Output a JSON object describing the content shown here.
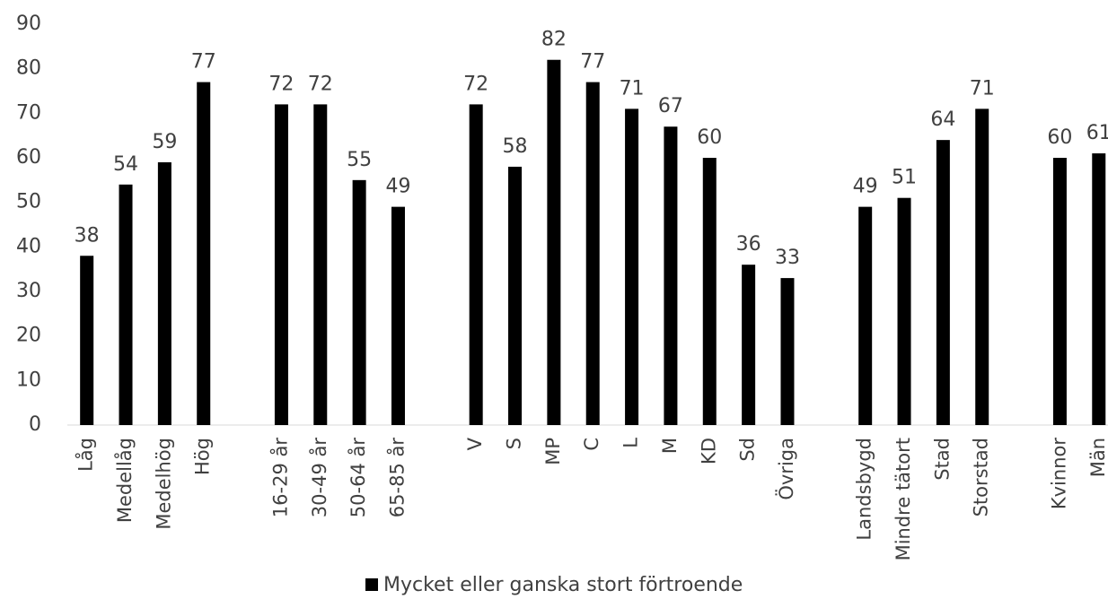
{
  "chart_data": {
    "type": "bar",
    "categories": [
      "Låg",
      "Medellåg",
      "Medelhög",
      "Hög",
      null,
      "16-29 år",
      "30-49 år",
      "50-64 år",
      "65-85 år",
      null,
      "V",
      "S",
      "MP",
      "C",
      "L",
      "M",
      "KD",
      "Sd",
      "Övriga",
      null,
      "Landsbygd",
      "Mindre tätort",
      "Stad",
      "Storstad",
      null,
      "Kvinnor",
      "Män"
    ],
    "series": [
      {
        "name": "Mycket eller ganska stort förtroende",
        "color": "#000000",
        "values": [
          38,
          54,
          59,
          77,
          null,
          72,
          72,
          55,
          49,
          null,
          72,
          58,
          82,
          77,
          71,
          67,
          60,
          36,
          33,
          null,
          49,
          51,
          64,
          71,
          null,
          60,
          61
        ]
      }
    ],
    "ylim": [
      0,
      90
    ],
    "yticks": [
      0,
      10,
      20,
      30,
      40,
      50,
      60,
      70,
      80,
      90
    ],
    "grid": false,
    "legend": "bottom"
  }
}
